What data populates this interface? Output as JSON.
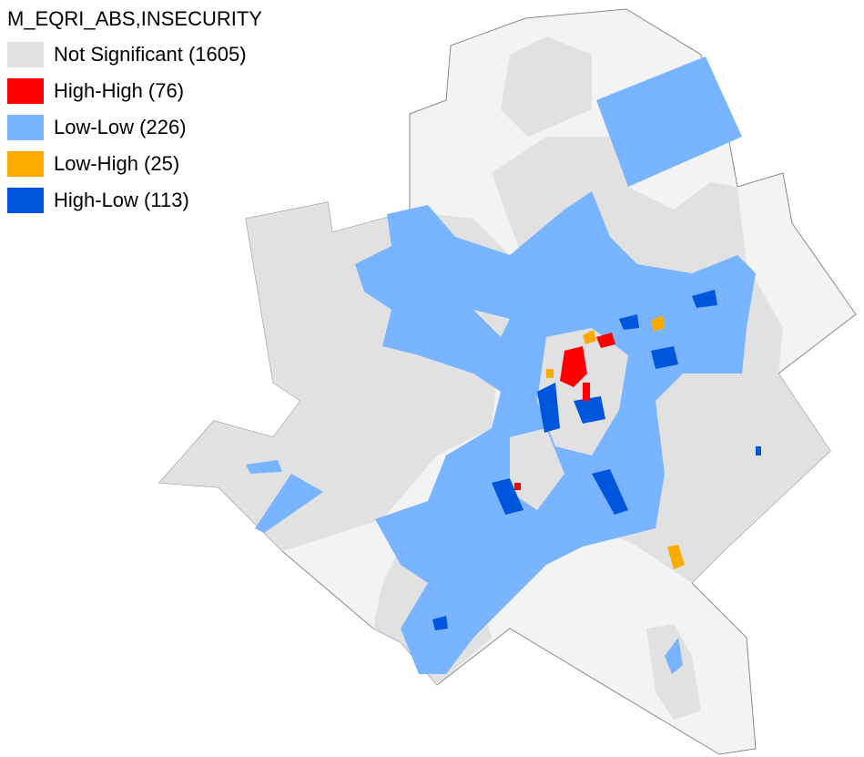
{
  "legend": {
    "title": "M_EQRI_ABS,INSECURITY",
    "items": [
      {
        "label": "Not Significant (1605)",
        "color": "#e1e1e1"
      },
      {
        "label": "High-High (76)",
        "color": "#ff0000"
      },
      {
        "label": "Low-Low (226)",
        "color": "#78b4ff"
      },
      {
        "label": "Low-High (25)",
        "color": "#ffaa00"
      },
      {
        "label": "High-Low (113)",
        "color": "#0055dd"
      }
    ]
  }
}
